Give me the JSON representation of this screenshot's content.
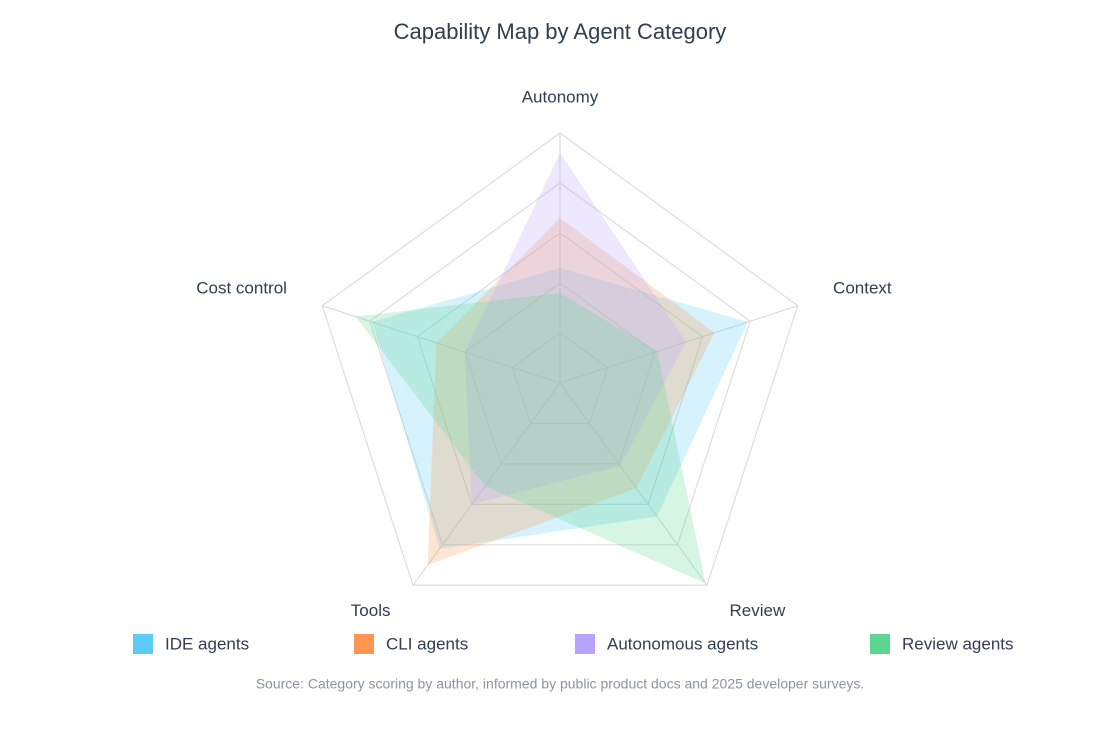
{
  "chart_data": {
    "type": "radar",
    "title": "Capability Map by Agent Category",
    "categories": [
      "Autonomy",
      "Context",
      "Review",
      "Tools",
      "Cost control"
    ],
    "rlim": [
      0,
      10
    ],
    "rticks": [
      2,
      4,
      6,
      8,
      10
    ],
    "series": [
      {
        "name": "IDE agents",
        "color": "#5ccbf5",
        "values": [
          4.6,
          7.9,
          6.6,
          8.2,
          7.9
        ]
      },
      {
        "name": "CLI agents",
        "color": "#fd9650",
        "values": [
          6.6,
          6.5,
          5.2,
          9.0,
          5.2
        ]
      },
      {
        "name": "Autonomous agents",
        "color": "#b7a3fa",
        "values": [
          9.2,
          5.3,
          4.1,
          6.0,
          4.0
        ]
      },
      {
        "name": "Review agents",
        "color": "#5bd68f",
        "values": [
          3.6,
          4.1,
          9.9,
          5.1,
          8.6
        ]
      }
    ],
    "source": "Source: Category scoring by author, informed by public product docs and 2025 developer surveys."
  }
}
